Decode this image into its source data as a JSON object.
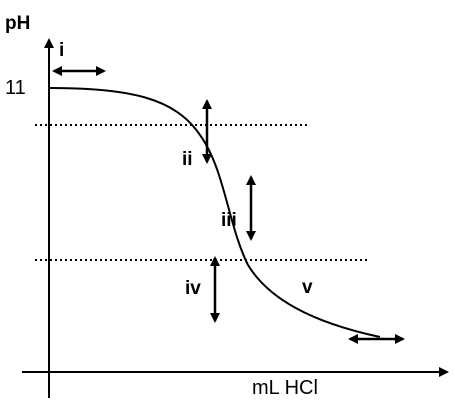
{
  "chart_data": {
    "type": "line",
    "title": "",
    "xlabel": "mL HCl",
    "ylabel": "pH",
    "y_tick_labels": [
      "11"
    ],
    "grid": false,
    "legend": "none",
    "series": [
      {
        "name": "",
        "curve_shape": "titration curve of a weak base with HCl: starts at pH 11, gradual buffer decline, steep drop through the equivalence point, then levels off"
      }
    ],
    "reference_lines": [
      {
        "style": "dotted",
        "kind": "horizontal",
        "position": "upper"
      },
      {
        "style": "dotted",
        "kind": "horizontal",
        "position": "lower"
      }
    ],
    "annotations": [
      {
        "label": "i",
        "arrow": "horizontal",
        "region": "start of titration"
      },
      {
        "label": "ii",
        "arrow": "vertical",
        "region": "buffer region"
      },
      {
        "label": "iii",
        "arrow": "vertical",
        "region": "equivalence region"
      },
      {
        "label": "iv",
        "arrow": "vertical",
        "region": "below lower dotted line"
      },
      {
        "label": "v",
        "arrow": "horizontal",
        "region": "excess acid"
      }
    ]
  },
  "colors": {
    "line": "#000000",
    "background": "#ffffff"
  }
}
